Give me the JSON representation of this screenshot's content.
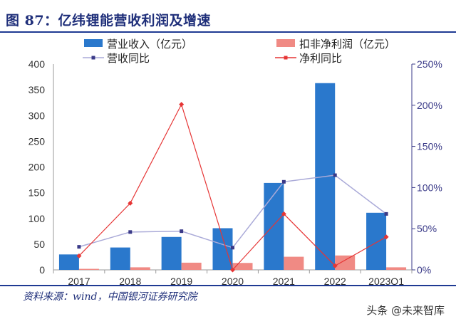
{
  "header": {
    "title": "图 87：亿纬锂能营收利润及增速"
  },
  "footer": {
    "source": "资料来源：wind，中国银河证券研究院",
    "watermark": "头条 @未来智库"
  },
  "colors": {
    "revenue_bar": "#2a78cc",
    "profit_bar": "#f08a84",
    "revenue_line": "#aaaad8",
    "revenue_marker": "#3a3a88",
    "profit_line": "#e63535",
    "axis_text": "#333333",
    "right_axis": "#3a3a88",
    "title": "#1f2f7a"
  },
  "chart_data": {
    "type": "bar",
    "categories": [
      "2017",
      "2018",
      "2019",
      "2020",
      "2021",
      "2022",
      "2023Q1"
    ],
    "left_axis": {
      "min": 0,
      "max": 400,
      "ticks": [
        "0",
        "50",
        "100",
        "150",
        "200",
        "250",
        "300",
        "350",
        "400"
      ]
    },
    "right_axis": {
      "min": 0,
      "max": 250,
      "ticks": [
        "0%",
        "50%",
        "100%",
        "150%",
        "200%",
        "250%"
      ]
    },
    "series": [
      {
        "name": "营业收入（亿元）",
        "kind": "bar",
        "axis": "left",
        "values": [
          30,
          43.5,
          64,
          81,
          169,
          363,
          111
        ]
      },
      {
        "name": "扣非净利润（亿元）",
        "kind": "bar",
        "axis": "left",
        "values": [
          2,
          5,
          14,
          13.5,
          25.5,
          28,
          5
        ]
      },
      {
        "name": "营收同比",
        "kind": "line",
        "axis": "right",
        "values": [
          28,
          46,
          47,
          27,
          107,
          115,
          68
        ]
      },
      {
        "name": "净利同比",
        "kind": "line",
        "axis": "right",
        "values": [
          17,
          81,
          201,
          0,
          68,
          5,
          40
        ]
      }
    ],
    "legend": "top"
  }
}
